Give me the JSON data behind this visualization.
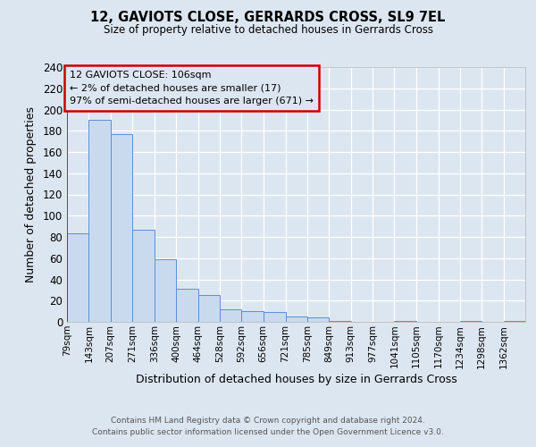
{
  "title": "12, GAVIOTS CLOSE, GERRARDS CROSS, SL9 7EL",
  "subtitle": "Size of property relative to detached houses in Gerrards Cross",
  "xlabel": "Distribution of detached houses by size in Gerrards Cross",
  "ylabel": "Number of detached properties",
  "bar_color": "#c9d9ee",
  "bar_edge_color": "#5b8fd4",
  "bg_color": "#dce6f1",
  "bin_labels": [
    "79sqm",
    "143sqm",
    "207sqm",
    "271sqm",
    "336sqm",
    "400sqm",
    "464sqm",
    "528sqm",
    "592sqm",
    "656sqm",
    "721sqm",
    "785sqm",
    "849sqm",
    "913sqm",
    "977sqm",
    "1041sqm",
    "1105sqm",
    "1170sqm",
    "1234sqm",
    "1298sqm",
    "1362sqm"
  ],
  "values": [
    83,
    190,
    177,
    87,
    59,
    31,
    25,
    12,
    10,
    9,
    5,
    4,
    1,
    0,
    0,
    1,
    0,
    0,
    1,
    0,
    1
  ],
  "ylim": [
    0,
    240
  ],
  "yticks": [
    0,
    20,
    40,
    60,
    80,
    100,
    120,
    140,
    160,
    180,
    200,
    220,
    240
  ],
  "annotation_title": "12 GAVIOTS CLOSE: 106sqm",
  "annotation_line1": "← 2% of detached houses are smaller (17)",
  "annotation_line2": "97% of semi-detached houses are larger (671) →",
  "box_edge_color": "#cc0000",
  "vline_color": "#cc0000",
  "footer1": "Contains HM Land Registry data © Crown copyright and database right 2024.",
  "footer2": "Contains public sector information licensed under the Open Government Licence v3.0."
}
